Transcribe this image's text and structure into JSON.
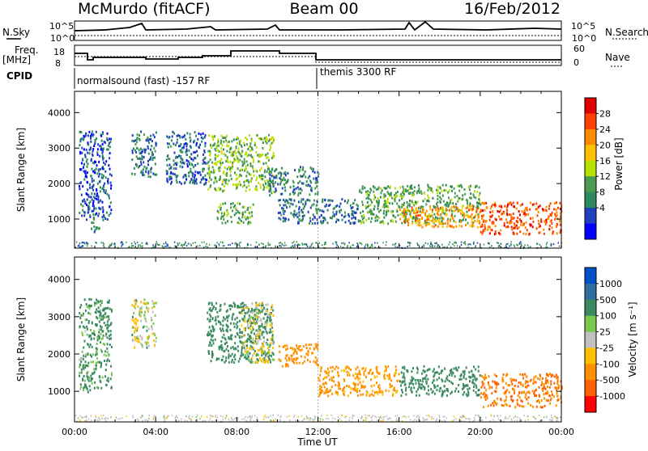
{
  "header": {
    "station": "McMurdo (fitACF)",
    "beam": "Beam 00",
    "date": "16/Feb/2012"
  },
  "strip_labels": {
    "nsky": "N.Sky",
    "nsky_ticks": [
      "10^5",
      "10^0"
    ],
    "nsearch": "N.Search",
    "nsearch_ticks": [
      "10^5",
      "10^0"
    ],
    "freq_label": "Freq.",
    "freq_unit": "[MHz]",
    "freq_ticks": [
      "18",
      "8"
    ],
    "nave": "Nave",
    "nave_ticks": [
      "60",
      "0"
    ],
    "cpid": "CPID",
    "cpid_mode_1": "normalsound (fast) -157 RF",
    "cpid_mode_2": "themis 3300 RF"
  },
  "chart_data": [
    {
      "type": "heatmap",
      "title": "",
      "xlabel": "Time UT",
      "ylabel": "Slant Range [km]",
      "xlim": [
        0,
        24
      ],
      "ylim": [
        180,
        4600
      ],
      "x_ticks": [
        "00:00",
        "04:00",
        "08:00",
        "12:00",
        "16:00",
        "20:00",
        "00:00"
      ],
      "y_ticks": [
        "1000",
        "2000",
        "3000",
        "4000"
      ],
      "colorbar": {
        "label": "Power [dB]",
        "ticks": [
          "28",
          "24",
          "20",
          "16",
          "12",
          "8",
          "4"
        ],
        "colors": [
          "#e00000",
          "#ff4000",
          "#ff8c00",
          "#ffc000",
          "#b8e000",
          "#4a9a50",
          "#2d8a5a",
          "#2040c0",
          "#0000ff"
        ]
      },
      "echo_regions": [
        {
          "t": [
            0.2,
            1.8
          ],
          "range": [
            1000,
            3500
          ],
          "power_db": 6
        },
        {
          "t": [
            0.8,
            1.2
          ],
          "range": [
            650,
            1100
          ],
          "power_db": 10
        },
        {
          "t": [
            2.8,
            4.0
          ],
          "range": [
            2200,
            3500
          ],
          "power_db": 8
        },
        {
          "t": [
            4.5,
            6.5
          ],
          "range": [
            2000,
            3500
          ],
          "power_db": 7
        },
        {
          "t": [
            6.5,
            9.8
          ],
          "range": [
            1800,
            3400
          ],
          "power_db": 14
        },
        {
          "t": [
            7.0,
            8.8
          ],
          "range": [
            900,
            1500
          ],
          "power_db": 12
        },
        {
          "t": [
            9.5,
            12.0
          ],
          "range": [
            1700,
            2500
          ],
          "power_db": 9
        },
        {
          "t": [
            10.0,
            14.0
          ],
          "range": [
            900,
            1600
          ],
          "power_db": 8
        },
        {
          "t": [
            14.0,
            20.0
          ],
          "range": [
            900,
            2000
          ],
          "power_db": 12
        },
        {
          "t": [
            16.0,
            20.0
          ],
          "range": [
            800,
            1400
          ],
          "power_db": 22
        },
        {
          "t": [
            20.0,
            24.0
          ],
          "range": [
            600,
            1500
          ],
          "power_db": 26
        }
      ]
    },
    {
      "type": "heatmap",
      "title": "",
      "xlabel": "Time UT",
      "ylabel": "Slant Range [km]",
      "xlim": [
        0,
        24
      ],
      "ylim": [
        180,
        4600
      ],
      "x_ticks": [
        "00:00",
        "04:00",
        "08:00",
        "12:00",
        "16:00",
        "20:00",
        "00:00"
      ],
      "y_ticks": [
        "1000",
        "2000",
        "3000",
        "4000"
      ],
      "colorbar": {
        "label": "Velocity [m s⁻¹]",
        "ticks": [
          "1000",
          "500",
          "100",
          "25",
          "-25",
          "-100",
          "-500",
          "-1000"
        ],
        "colors": [
          "#0050c8",
          "#2f6e9e",
          "#3a8a60",
          "#78c850",
          "#c0c0c0",
          "#ffc000",
          "#ff9000",
          "#ff6000",
          "#ff0000"
        ]
      },
      "echo_regions": [
        {
          "t": [
            0.2,
            1.8
          ],
          "range": [
            1000,
            3500
          ],
          "velocity": 100
        },
        {
          "t": [
            2.8,
            4.0
          ],
          "range": [
            2200,
            3500
          ],
          "velocity": 0
        },
        {
          "t": [
            6.5,
            9.8
          ],
          "range": [
            1800,
            3400
          ],
          "velocity": 150
        },
        {
          "t": [
            8.2,
            9.8
          ],
          "range": [
            1800,
            3400
          ],
          "velocity": 0
        },
        {
          "t": [
            10.0,
            12.0
          ],
          "range": [
            1700,
            2300
          ],
          "velocity": -200
        },
        {
          "t": [
            12.0,
            16.0
          ],
          "range": [
            900,
            1700
          ],
          "velocity": -150
        },
        {
          "t": [
            16.0,
            20.0
          ],
          "range": [
            900,
            1700
          ],
          "velocity": 200
        },
        {
          "t": [
            20.0,
            24.0
          ],
          "range": [
            600,
            1500
          ],
          "velocity": -300
        }
      ]
    }
  ]
}
